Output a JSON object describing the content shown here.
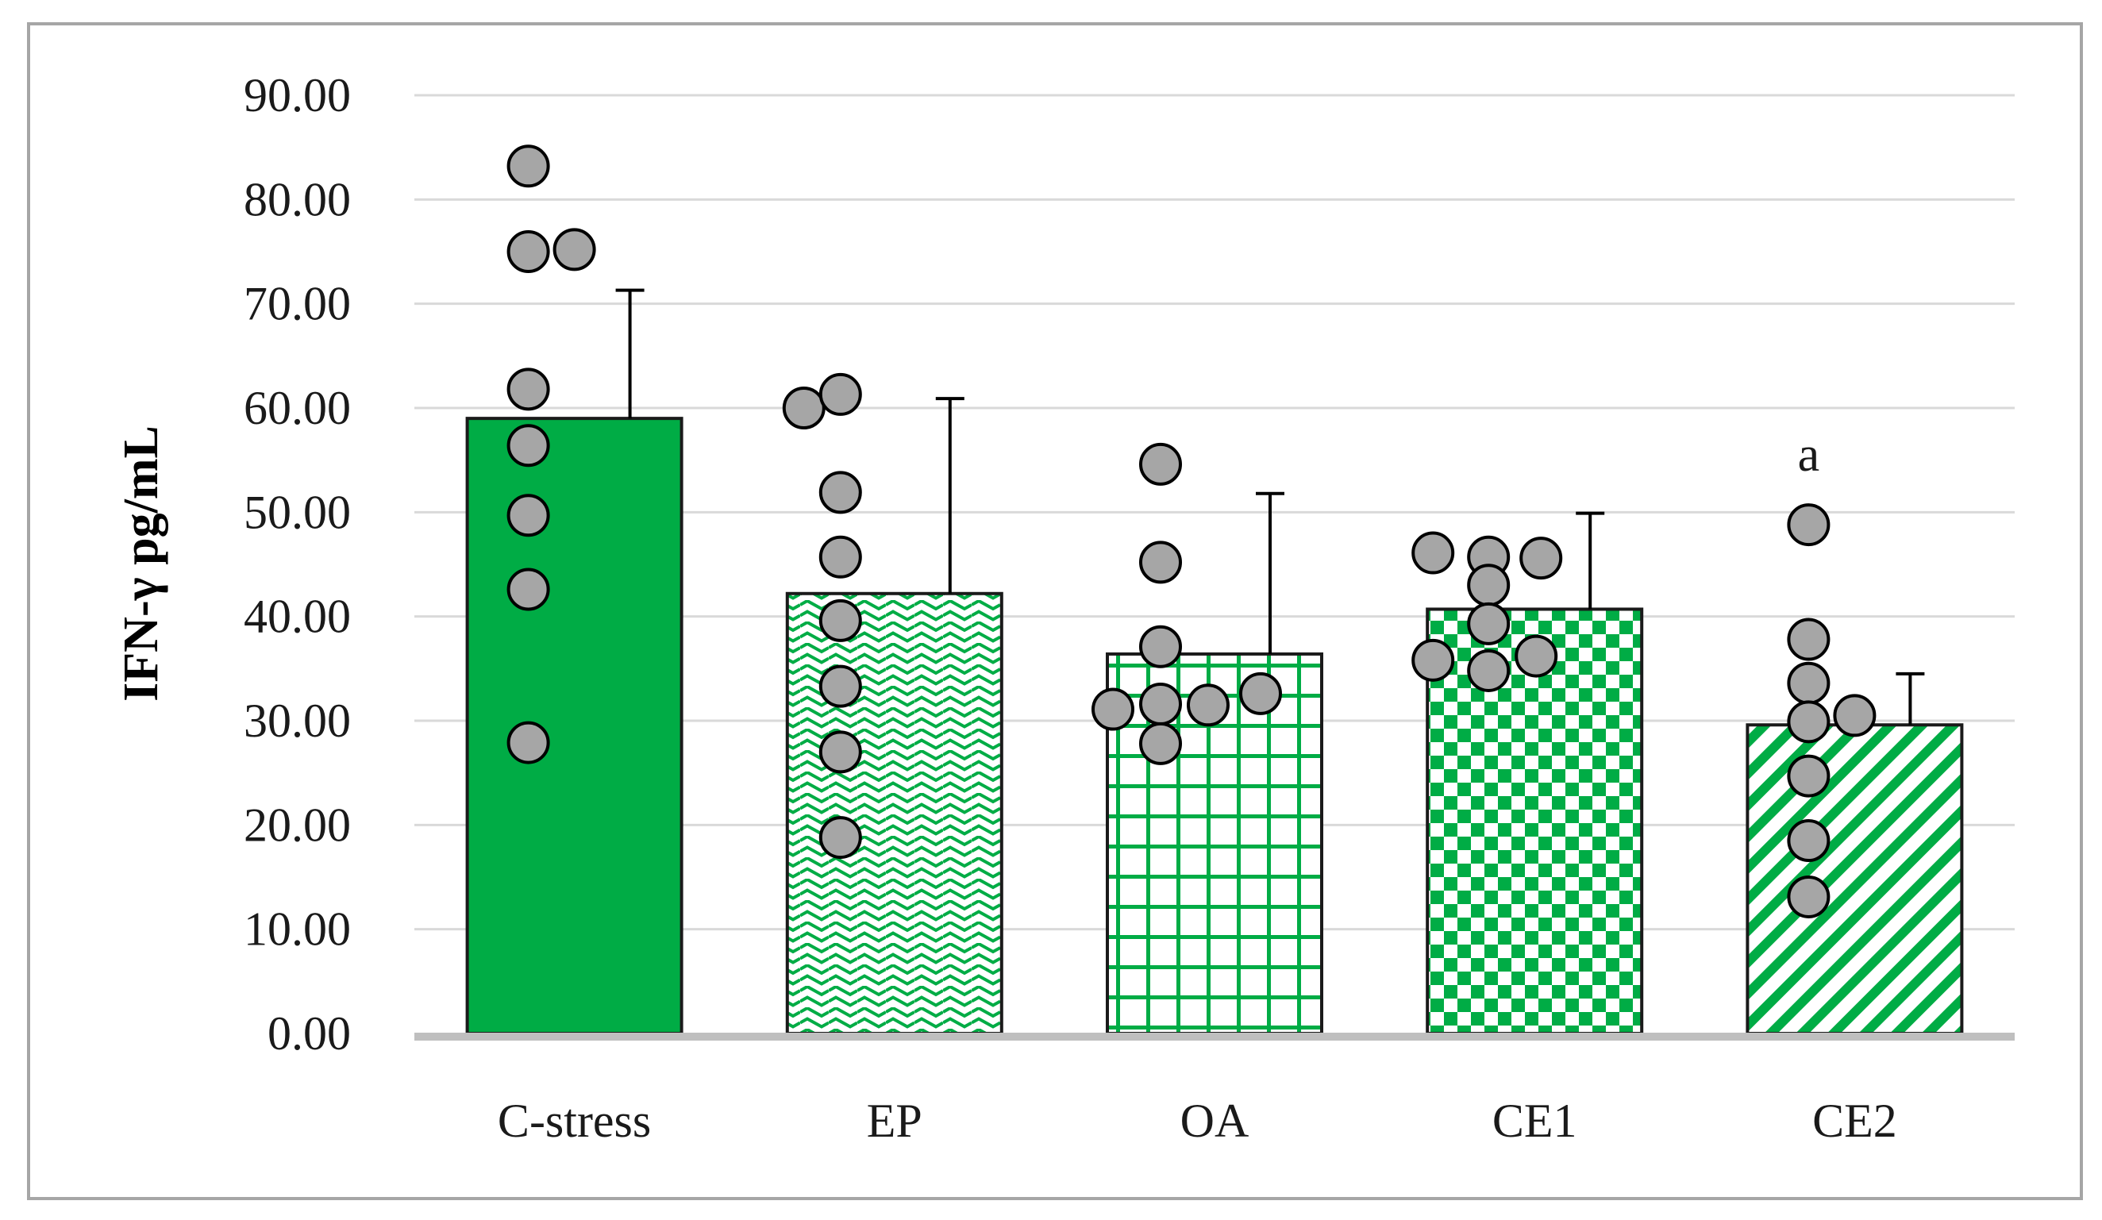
{
  "chart_data": {
    "type": "bar",
    "title": "",
    "xlabel": "",
    "ylabel": "IFN-γ pg/mL",
    "ylim": [
      0,
      90
    ],
    "yticks": [
      "0.00",
      "10.00",
      "20.00",
      "30.00",
      "40.00",
      "50.00",
      "60.00",
      "70.00",
      "80.00",
      "90.00"
    ],
    "grid": true,
    "categories": [
      "C-stress",
      "EP",
      "OA",
      "CE1",
      "CE2"
    ],
    "values": [
      59.0,
      42.2,
      36.4,
      40.7,
      29.6
    ],
    "errors": [
      12.3,
      18.7,
      15.4,
      9.2,
      4.9
    ],
    "patterns": [
      "solid",
      "wave",
      "grid",
      "checker",
      "diagonal"
    ],
    "points": [
      [
        83.2,
        75.0,
        75.2,
        61.8,
        56.4,
        49.7,
        42.6,
        27.9
      ],
      [
        60.0,
        61.3,
        51.9,
        45.7,
        39.6,
        33.3,
        27.0,
        18.8
      ],
      [
        54.6,
        45.2,
        37.1,
        31.6,
        31.1,
        31.5,
        32.6,
        27.8
      ],
      [
        46.1,
        45.7,
        45.6,
        43.0,
        39.3,
        35.8,
        34.8,
        36.2
      ],
      [
        48.8,
        37.8,
        33.6,
        29.9,
        30.5,
        24.7,
        18.5,
        13.1
      ]
    ],
    "annotations": [
      {
        "category": "CE2",
        "text": "a",
        "y": 55.5
      }
    ],
    "colors": {
      "bar_green": "#00ac45",
      "point_fill": "#a6a6a6",
      "grid": "#d9d9d9",
      "axis": "#bfbfbf",
      "frame": "#a6a6a6"
    }
  }
}
